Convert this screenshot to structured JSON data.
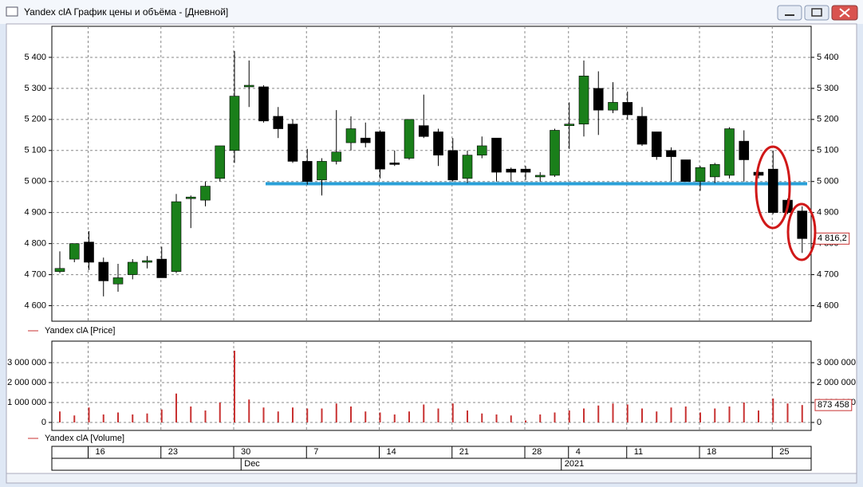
{
  "window": {
    "title": "Yandex clA График цены и объёма - [Дневной]"
  },
  "chart_data": [
    {
      "type": "candlestick",
      "legend": "Yandex clA [Price]",
      "categories": [
        null,
        null,
        "16",
        null,
        null,
        null,
        null,
        "23",
        null,
        null,
        null,
        null,
        "30",
        null,
        null,
        null,
        null,
        "7",
        null,
        null,
        null,
        null,
        "14",
        null,
        null,
        null,
        null,
        "21",
        null,
        null,
        null,
        null,
        "28",
        null,
        null,
        "4",
        null,
        null,
        null,
        "11",
        null,
        null,
        null,
        null,
        "18",
        null,
        null,
        null,
        null,
        "25",
        null,
        null
      ],
      "months": [
        "Dec",
        "2021"
      ],
      "open": [
        4710,
        4750,
        4805,
        4740,
        4670,
        4700,
        4745,
        4750,
        4710,
        4945,
        4940,
        5010,
        5100,
        5310,
        5305,
        5210,
        5185,
        5065,
        5005,
        5065,
        5125,
        5140,
        5160,
        5060,
        5075,
        5180,
        5160,
        5100,
        5010,
        5085,
        5140,
        5040,
        5040,
        5020,
        5020,
        5185,
        5185,
        5300,
        5230,
        5255,
        5210,
        5160,
        5100,
        5070,
        5000,
        5015,
        5020,
        5130,
        5030,
        5040,
        4940,
        4905
      ],
      "high": [
        4775,
        4800,
        4840,
        4755,
        4735,
        4750,
        4760,
        4790,
        4960,
        4955,
        5000,
        5115,
        5420,
        5390,
        5310,
        5240,
        5200,
        5105,
        5075,
        5230,
        5210,
        5190,
        5165,
        5100,
        5200,
        5280,
        5170,
        5140,
        5100,
        5145,
        5140,
        5045,
        5050,
        5030,
        5170,
        5255,
        5390,
        5355,
        5320,
        5290,
        5240,
        5160,
        5110,
        5070,
        5050,
        5060,
        5175,
        5165,
        5050,
        5100,
        4945,
        4920
      ],
      "low": [
        4705,
        4740,
        4715,
        4630,
        4645,
        4685,
        4720,
        4690,
        4705,
        4850,
        4920,
        5000,
        5060,
        5240,
        5190,
        5140,
        5060,
        4990,
        4955,
        5055,
        5100,
        5110,
        5010,
        5050,
        5070,
        5140,
        5050,
        5000,
        4995,
        5075,
        5000,
        5000,
        5005,
        5000,
        5015,
        5105,
        5145,
        5150,
        5220,
        5200,
        5115,
        5070,
        5000,
        5000,
        4970,
        4995,
        5010,
        5000,
        5010,
        4895,
        4895,
        4770
      ],
      "close": [
        4720,
        4800,
        4740,
        4680,
        4690,
        4740,
        4745,
        4690,
        4935,
        4950,
        4985,
        5115,
        5275,
        5310,
        5195,
        5170,
        5065,
        5000,
        5065,
        5095,
        5170,
        5125,
        5040,
        5055,
        5200,
        5145,
        5085,
        5005,
        5085,
        5115,
        5030,
        5030,
        5030,
        5020,
        5165,
        5185,
        5340,
        5230,
        5255,
        5215,
        5120,
        5080,
        5080,
        5000,
        5045,
        5055,
        5170,
        5070,
        5020,
        4900,
        4900,
        4816.2
      ],
      "last_label": "4 816,2",
      "up_color": "#1a7f1a",
      "down_color": "#000000",
      "level": 4993,
      "level_color": "#2aa0d8",
      "ylim": [
        4550,
        5500
      ],
      "yticks": [
        {
          "value": 4600,
          "label": "4 600"
        },
        {
          "value": 4700,
          "label": "4 700"
        },
        {
          "value": 4800,
          "label": "4 800"
        },
        {
          "value": 4900,
          "label": "4 900"
        },
        {
          "value": 5000,
          "label": "5 000"
        },
        {
          "value": 5100,
          "label": "5 100"
        },
        {
          "value": 5200,
          "label": "5 200"
        },
        {
          "value": 5300,
          "label": "5 300"
        },
        {
          "value": 5400,
          "label": "5 400"
        }
      ],
      "grid": true
    },
    {
      "type": "bar",
      "legend": "Yandex clA [Volume]",
      "color": "#c83232",
      "values": [
        550000,
        350000,
        750000,
        400000,
        500000,
        400000,
        450000,
        650000,
        1450000,
        800000,
        600000,
        1000000,
        3600000,
        1150000,
        750000,
        550000,
        750000,
        700000,
        700000,
        950000,
        800000,
        550000,
        500000,
        400000,
        550000,
        900000,
        700000,
        950000,
        600000,
        450000,
        400000,
        350000,
        100000,
        400000,
        500000,
        600000,
        700000,
        850000,
        950000,
        900000,
        700000,
        550000,
        750000,
        800000,
        500000,
        700000,
        800000,
        1000000,
        600000,
        1200000,
        950000,
        873458
      ],
      "last_label": "873 458",
      "ylim": [
        -400000,
        4080000
      ],
      "yticks": [
        0,
        {
          "value": 1000000,
          "label": "1 000 000"
        },
        {
          "value": 2000000,
          "label": "2 000 000"
        },
        {
          "value": 3000000,
          "label": "3 000 000"
        }
      ],
      "grid": true
    }
  ]
}
